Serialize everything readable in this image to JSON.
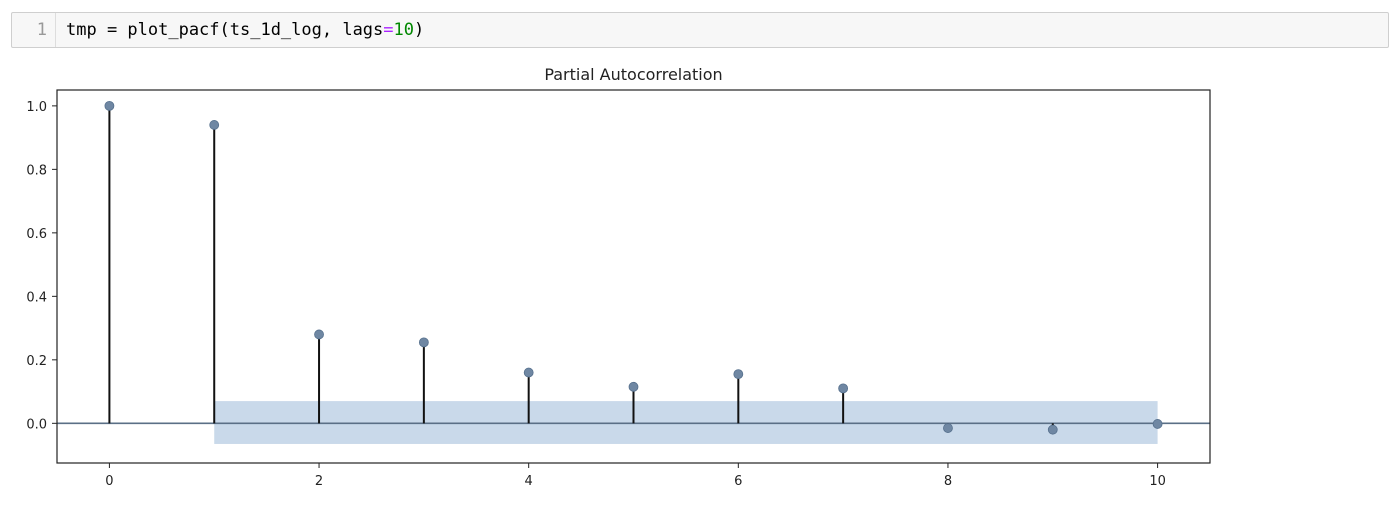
{
  "cell": {
    "line_number": "1",
    "code_prefix": "tmp = plot_pacf(ts_1d_log, lags",
    "code_op": "=",
    "code_num": "10",
    "code_suffix": ")"
  },
  "chart_data": {
    "type": "scatter",
    "title": "Partial Autocorrelation",
    "xlabel": "",
    "ylabel": "",
    "x": [
      0,
      1,
      2,
      3,
      4,
      5,
      6,
      7,
      8,
      9,
      10
    ],
    "values": [
      1.0,
      0.94,
      0.28,
      0.255,
      0.16,
      0.115,
      0.155,
      0.11,
      -0.015,
      -0.02,
      -0.002
    ],
    "confidence_band": {
      "x_range": [
        1,
        10
      ],
      "lower": -0.065,
      "upper": 0.07
    },
    "xlim": [
      -0.5,
      10.5
    ],
    "ylim": [
      -0.125,
      1.05
    ],
    "xticks": [
      "0",
      "2",
      "4",
      "6",
      "8",
      "10"
    ],
    "yticks": [
      "0.0",
      "0.2",
      "0.4",
      "0.6",
      "0.8",
      "1.0"
    ],
    "grid": false,
    "colors": {
      "marker": "#6f87a3",
      "stem": "#111111",
      "band": "#c9d9ea",
      "baseline": "#5a6f86"
    }
  }
}
